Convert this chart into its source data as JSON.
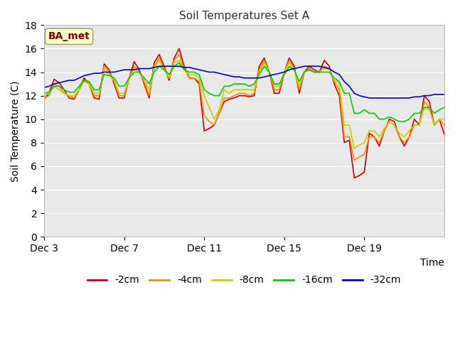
{
  "title": "Soil Temperatures Set A",
  "xlabel": "Time",
  "ylabel": "Soil Temperature (C)",
  "annotation": "BA_met",
  "ylim": [
    0,
    18
  ],
  "yticks": [
    0,
    2,
    4,
    6,
    8,
    10,
    12,
    14,
    16,
    18
  ],
  "x_tick_labels": [
    "Dec 3",
    "Dec 7",
    "Dec 11",
    "Dec 15",
    "Dec 19"
  ],
  "x_tick_positions": [
    0,
    4,
    8,
    12,
    16
  ],
  "xlim": [
    0,
    20
  ],
  "legend_labels": [
    "-2cm",
    "-4cm",
    "-8cm",
    "-16cm",
    "-32cm"
  ],
  "line_colors": [
    "#cc0000",
    "#ff8800",
    "#cccc00",
    "#00cc00",
    "#0000dd"
  ],
  "line_width": 1.2,
  "fig_bg_color": "#ffffff",
  "plot_bg_color": "#e8e8e8",
  "grid_color": "#ffffff",
  "x_data": [
    0,
    0.25,
    0.5,
    0.75,
    1,
    1.25,
    1.5,
    1.75,
    2,
    2.25,
    2.5,
    2.75,
    3,
    3.25,
    3.5,
    3.75,
    4,
    4.25,
    4.5,
    4.75,
    5,
    5.25,
    5.5,
    5.75,
    6,
    6.25,
    6.5,
    6.75,
    7,
    7.25,
    7.5,
    7.75,
    8,
    8.25,
    8.5,
    8.75,
    9,
    9.25,
    9.5,
    9.75,
    10,
    10.25,
    10.5,
    10.75,
    11,
    11.25,
    11.5,
    11.75,
    12,
    12.25,
    12.5,
    12.75,
    13,
    13.25,
    13.5,
    13.75,
    14,
    14.25,
    14.5,
    14.75,
    15,
    15.25,
    15.5,
    15.75,
    16,
    16.25,
    16.5,
    16.75,
    17,
    17.25,
    17.5,
    17.75,
    18,
    18.25,
    18.5,
    18.75,
    19,
    19.25,
    19.5,
    19.75,
    20
  ],
  "y_2cm": [
    11.7,
    12.2,
    13.4,
    13.1,
    12.5,
    11.8,
    11.7,
    12.5,
    13.5,
    13.0,
    11.8,
    11.7,
    14.7,
    14.2,
    13.0,
    11.8,
    11.8,
    13.5,
    14.9,
    14.2,
    13.0,
    11.8,
    14.8,
    15.5,
    14.5,
    13.3,
    15.2,
    16.0,
    14.5,
    13.5,
    13.5,
    13.0,
    9.0,
    9.2,
    9.5,
    10.5,
    11.5,
    11.7,
    11.8,
    12.0,
    12.0,
    11.9,
    12.0,
    14.5,
    15.2,
    14.0,
    12.2,
    12.2,
    14.0,
    15.2,
    14.5,
    12.2,
    14.0,
    14.5,
    14.2,
    14.0,
    15.0,
    14.5,
    13.0,
    12.0,
    8.0,
    8.2,
    5.0,
    5.2,
    5.5,
    8.8,
    8.5,
    7.7,
    9.0,
    10.0,
    9.8,
    8.5,
    7.7,
    8.5,
    10.0,
    9.5,
    12.0,
    11.5,
    9.5,
    10.0,
    8.7
  ],
  "y_4cm": [
    11.8,
    12.0,
    13.0,
    12.8,
    12.2,
    12.0,
    11.8,
    12.5,
    13.3,
    13.0,
    12.0,
    12.0,
    14.5,
    14.0,
    13.2,
    12.0,
    12.0,
    13.5,
    14.5,
    14.0,
    13.2,
    12.0,
    14.5,
    15.2,
    14.3,
    13.5,
    15.0,
    15.5,
    14.3,
    13.5,
    13.5,
    13.2,
    10.3,
    9.8,
    9.5,
    10.5,
    11.8,
    11.8,
    12.0,
    12.2,
    12.2,
    12.0,
    12.2,
    14.2,
    15.0,
    14.0,
    12.5,
    12.5,
    14.0,
    15.0,
    14.3,
    12.5,
    14.0,
    14.3,
    14.0,
    14.0,
    14.5,
    14.3,
    13.2,
    12.5,
    8.5,
    8.5,
    6.5,
    6.8,
    7.0,
    8.5,
    8.5,
    8.0,
    9.0,
    9.8,
    9.5,
    8.5,
    8.0,
    8.5,
    9.5,
    9.5,
    11.5,
    11.0,
    9.5,
    10.0,
    9.5
  ],
  "y_8cm": [
    12.0,
    12.2,
    12.8,
    12.5,
    12.2,
    12.0,
    12.0,
    12.5,
    13.2,
    13.0,
    12.2,
    12.2,
    14.2,
    13.8,
    13.3,
    12.2,
    12.2,
    13.5,
    14.3,
    14.0,
    13.3,
    12.5,
    14.3,
    15.0,
    14.2,
    13.5,
    14.8,
    15.0,
    14.2,
    13.8,
    13.8,
    13.5,
    12.0,
    11.0,
    10.0,
    10.8,
    12.5,
    12.2,
    12.5,
    12.5,
    12.5,
    12.5,
    12.5,
    14.0,
    14.8,
    14.0,
    12.8,
    12.8,
    14.0,
    14.8,
    14.2,
    12.8,
    14.0,
    14.2,
    14.0,
    14.0,
    14.3,
    14.2,
    13.3,
    13.0,
    9.5,
    9.5,
    7.5,
    7.8,
    8.0,
    9.0,
    9.0,
    8.5,
    9.2,
    9.8,
    9.5,
    8.8,
    8.5,
    9.0,
    9.5,
    9.5,
    11.0,
    10.8,
    9.5,
    10.0,
    10.0
  ],
  "y_16cm": [
    12.2,
    12.3,
    12.8,
    12.8,
    12.5,
    12.3,
    12.3,
    12.8,
    13.3,
    13.2,
    12.5,
    12.5,
    13.8,
    13.7,
    13.5,
    12.8,
    12.8,
    13.5,
    14.0,
    14.0,
    13.5,
    13.0,
    14.0,
    14.5,
    14.2,
    13.8,
    14.5,
    14.8,
    14.2,
    14.0,
    14.0,
    13.8,
    12.5,
    12.2,
    12.0,
    12.0,
    12.8,
    12.8,
    13.0,
    13.0,
    13.0,
    12.8,
    13.0,
    13.8,
    14.5,
    14.0,
    13.0,
    13.0,
    13.8,
    14.5,
    14.2,
    13.2,
    14.0,
    14.2,
    14.0,
    14.0,
    14.0,
    14.0,
    13.5,
    13.2,
    12.2,
    12.2,
    10.5,
    10.5,
    10.8,
    10.5,
    10.5,
    10.0,
    10.0,
    10.2,
    10.0,
    9.8,
    9.8,
    10.0,
    10.5,
    10.5,
    11.0,
    11.0,
    10.5,
    10.8,
    11.0
  ],
  "y_32cm": [
    12.7,
    12.8,
    13.0,
    13.1,
    13.2,
    13.3,
    13.3,
    13.5,
    13.7,
    13.8,
    13.9,
    13.9,
    14.0,
    14.0,
    14.0,
    14.1,
    14.2,
    14.2,
    14.2,
    14.3,
    14.3,
    14.3,
    14.4,
    14.5,
    14.5,
    14.5,
    14.5,
    14.5,
    14.4,
    14.4,
    14.3,
    14.2,
    14.1,
    14.0,
    14.0,
    13.9,
    13.8,
    13.7,
    13.6,
    13.6,
    13.5,
    13.5,
    13.5,
    13.5,
    13.6,
    13.7,
    13.8,
    13.9,
    14.0,
    14.2,
    14.3,
    14.4,
    14.5,
    14.5,
    14.5,
    14.5,
    14.4,
    14.3,
    14.0,
    13.8,
    13.2,
    12.8,
    12.2,
    12.0,
    11.9,
    11.8,
    11.8,
    11.8,
    11.8,
    11.8,
    11.8,
    11.8,
    11.8,
    11.8,
    11.9,
    11.9,
    12.0,
    12.0,
    12.1,
    12.1,
    12.1
  ]
}
